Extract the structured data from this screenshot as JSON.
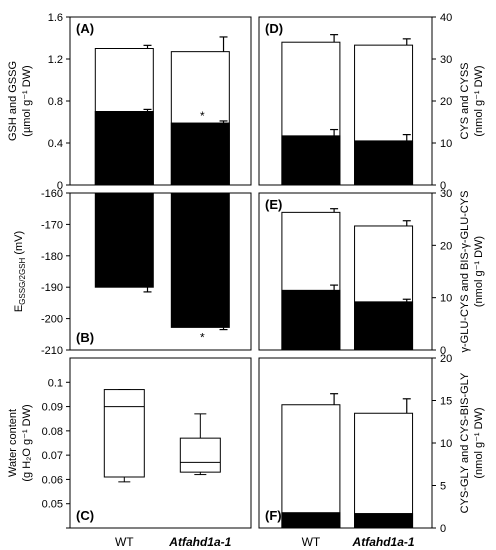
{
  "chart_data": [
    {
      "panel": "(A)",
      "type": "bar",
      "stacked": true,
      "categories": [
        "WT",
        "Atfahd1a-1"
      ],
      "ylabel_lines": [
        "GSH and GSSG",
        "(µmol g⁻¹ DW)"
      ],
      "ylim": [
        0,
        1.6
      ],
      "yticks": [
        0,
        0.4,
        0.8,
        1.2,
        1.6
      ],
      "ytick_labels": [
        "0",
        "0.4",
        "0.8",
        "1.2",
        "1.6"
      ],
      "y_axis_side": "left",
      "total_values": [
        1.3,
        1.27
      ],
      "total_errors": [
        0.03,
        0.14
      ],
      "lower_values": [
        0.7,
        0.59
      ],
      "lower_errors": [
        0.02,
        0.02
      ],
      "annotations": [
        {
          "category": "Atfahd1a-1",
          "text": "*"
        }
      ]
    },
    {
      "panel": "(D)",
      "type": "bar",
      "stacked": true,
      "categories": [
        "WT",
        "Atfahd1a-1"
      ],
      "ylabel_lines": [
        "CYS and CYSS",
        "(nmol g⁻¹ DW)"
      ],
      "ylim": [
        0,
        40
      ],
      "yticks": [
        0,
        10,
        20,
        30,
        40
      ],
      "ytick_labels": [
        "0",
        "10",
        "20",
        "30",
        "40"
      ],
      "y_axis_side": "right",
      "total_values": [
        34.0,
        33.3
      ],
      "total_errors": [
        1.8,
        1.5
      ],
      "lower_values": [
        11.7,
        10.5
      ],
      "lower_errors": [
        1.5,
        1.5
      ],
      "annotations": []
    },
    {
      "panel": "(B)",
      "type": "bar",
      "stacked": false,
      "categories": [
        "WT",
        "Atfahd1a-1"
      ],
      "ylabel_main": "E",
      "ylabel_sub": "GSSG/2GSH",
      "ylabel_unit": " (mV)",
      "ylim": [
        -210,
        -160
      ],
      "yticks": [
        -160,
        -170,
        -180,
        -190,
        -200,
        -210
      ],
      "ytick_labels": [
        "-160",
        "-170",
        "-180",
        "-190",
        "-200",
        "-210"
      ],
      "y_axis_side": "left",
      "values": [
        -190.0,
        -202.8
      ],
      "errors": [
        1.5,
        0.7
      ],
      "annotations": [
        {
          "category": "Atfahd1a-1",
          "text": "*"
        }
      ]
    },
    {
      "panel": "(E)",
      "type": "bar",
      "stacked": true,
      "categories": [
        "WT",
        "Atfahd1a-1"
      ],
      "ylabel_lines": [
        "γ-GLU-CYS and BIS-γ-GLU-CYS",
        "(nmol g⁻¹ DW)"
      ],
      "ylim": [
        0,
        30
      ],
      "yticks": [
        0,
        10,
        20,
        30
      ],
      "ytick_labels": [
        "0",
        "10",
        "20",
        "30"
      ],
      "y_axis_side": "right",
      "total_values": [
        26.3,
        23.7
      ],
      "total_errors": [
        0.7,
        1.0
      ],
      "lower_values": [
        11.4,
        9.2
      ],
      "lower_errors": [
        1.0,
        0.5
      ],
      "annotations": []
    },
    {
      "panel": "(C)",
      "type": "box",
      "categories": [
        "WT",
        "Atfahd1a-1"
      ],
      "ylabel_lines": [
        "Water content",
        "(g H₂O g⁻¹ DW)"
      ],
      "ylim": [
        0.04,
        0.11
      ],
      "yticks": [
        0.04,
        0.05,
        0.06,
        0.07,
        0.08,
        0.09,
        0.1
      ],
      "ytick_labels": [
        "",
        "0.05",
        "0.06",
        "0.07",
        "0.08",
        "0.09",
        "0.1"
      ],
      "y_axis_side": "left",
      "boxes": [
        {
          "min": 0.059,
          "q1": 0.061,
          "median": 0.09,
          "q3": 0.097,
          "max": 0.097
        },
        {
          "min": 0.062,
          "q1": 0.063,
          "median": 0.067,
          "q3": 0.077,
          "max": 0.087
        }
      ]
    },
    {
      "panel": "(F)",
      "type": "bar",
      "stacked": true,
      "categories": [
        "WT",
        "Atfahd1a-1"
      ],
      "ylabel_lines": [
        "CYS-GLY and CYS-BIS-GLY",
        "(nmol g⁻¹ DW)"
      ],
      "ylim": [
        0,
        20
      ],
      "yticks": [
        0,
        5,
        10,
        15,
        20
      ],
      "ytick_labels": [
        "0",
        "5",
        "10",
        "15",
        "20"
      ],
      "y_axis_side": "right",
      "total_values": [
        14.5,
        13.5
      ],
      "total_errors": [
        1.3,
        1.7
      ],
      "lower_values": [
        1.8,
        1.7
      ],
      "lower_errors": [
        0.0,
        0.0
      ],
      "annotations": []
    }
  ],
  "x_tick_labels": [
    "WT",
    "Atfahd1a-1"
  ],
  "colors": {
    "upper_fill": "#ffffff",
    "lower_fill": "#000000",
    "frame": "#000000"
  }
}
